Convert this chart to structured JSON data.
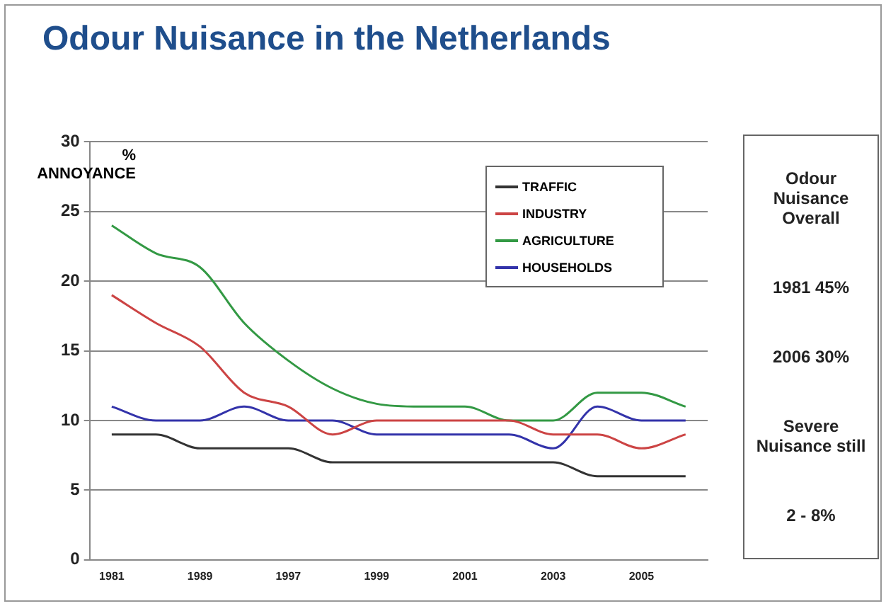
{
  "chart_data": {
    "type": "line",
    "title": "Odour Nuisance in the Netherlands",
    "ylabel": "% ANNOYANCE",
    "categories": [
      "1981",
      null,
      "1989",
      null,
      "1997",
      null,
      "1999",
      null,
      "2001",
      null,
      "2003",
      null,
      "2005",
      null
    ],
    "series": [
      {
        "name": "TRAFFIC",
        "color": "#333333",
        "values": [
          9,
          9,
          8,
          8,
          8,
          7,
          7,
          7,
          7,
          7,
          7,
          6,
          6,
          6
        ]
      },
      {
        "name": "INDUSTRY",
        "color": "#cc4444",
        "values": [
          19,
          17,
          15.3,
          12,
          11,
          9,
          10,
          10,
          10,
          10,
          9,
          9,
          8,
          9
        ]
      },
      {
        "name": "AGRICULTURE",
        "color": "#339944",
        "values": [
          24,
          22,
          21,
          17,
          14.3,
          12.3,
          11.2,
          11,
          11,
          10,
          10,
          12,
          12,
          11
        ]
      },
      {
        "name": "HOUSEHOLDS",
        "color": "#3333aa",
        "values": [
          11,
          10,
          10,
          11,
          10,
          10,
          9,
          9,
          9,
          9,
          8,
          11,
          10,
          10
        ]
      }
    ],
    "ylim": [
      0,
      30
    ],
    "yticks": [
      0,
      5,
      10,
      15,
      20,
      25,
      30
    ],
    "grid": "y",
    "legend": "top right",
    "marker": "none",
    "line_style": "solid",
    "annotations": [
      "Odour Nuisance Overall",
      "1981 45%",
      "2006 30%",
      "Severe Nuisance still",
      "2 - 8%"
    ]
  }
}
